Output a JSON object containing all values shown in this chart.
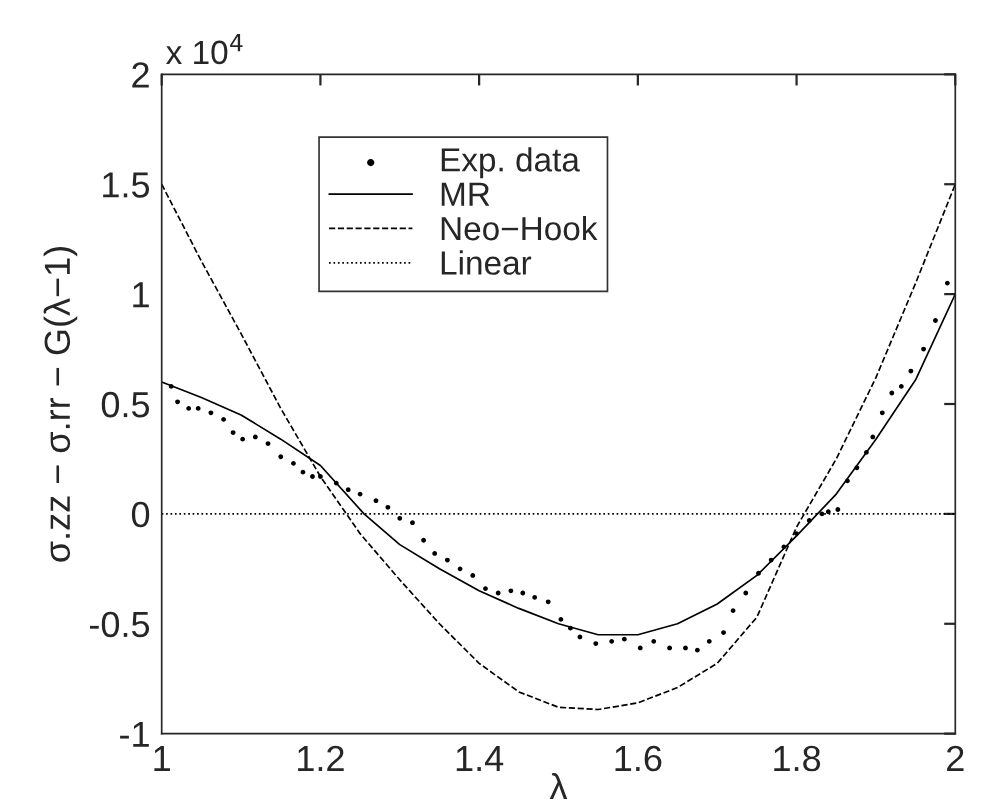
{
  "chart_data": {
    "type": "line",
    "xlabel": "λ",
    "ylabel": "σ.zz − σ.rr − G(λ−1)",
    "annotations": [
      "x 10$^{4}$"
    ],
    "xlim": [
      1,
      2
    ],
    "xticks": [
      1,
      1.2,
      1.4,
      1.6,
      1.8,
      2
    ],
    "ylim": [
      -1,
      2
    ],
    "yticks": [
      -1,
      -0.5,
      0,
      0.5,
      1,
      1.5,
      2
    ],
    "grid": false,
    "legend": "top",
    "series": [
      {
        "name": "Exp. data",
        "type": "scatter",
        "marker": "circle",
        "color": "#000000",
        "x": [
          1.012,
          1.02,
          1.034,
          1.046,
          1.062,
          1.078,
          1.09,
          1.102,
          1.118,
          1.134,
          1.15,
          1.166,
          1.178,
          1.19,
          1.2,
          1.22,
          1.235,
          1.25,
          1.27,
          1.285,
          1.3,
          1.316,
          1.33,
          1.344,
          1.36,
          1.376,
          1.392,
          1.408,
          1.424,
          1.44,
          1.455,
          1.47,
          1.487,
          1.503,
          1.515,
          1.527,
          1.547,
          1.567,
          1.583,
          1.603,
          1.62,
          1.64,
          1.66,
          1.675,
          1.69,
          1.708,
          1.72,
          1.736,
          1.752,
          1.768,
          1.784,
          1.8,
          1.816,
          1.832,
          1.84,
          1.852,
          1.864,
          1.876,
          1.888,
          1.896,
          1.908,
          1.92,
          1.932,
          1.944,
          1.96,
          1.975,
          1.99
        ],
        "values": [
          0.58,
          0.51,
          0.48,
          0.48,
          0.46,
          0.43,
          0.37,
          0.34,
          0.35,
          0.32,
          0.26,
          0.23,
          0.19,
          0.17,
          0.17,
          0.14,
          0.11,
          0.09,
          0.06,
          0.03,
          -0.02,
          -0.04,
          -0.12,
          -0.18,
          -0.21,
          -0.25,
          -0.28,
          -0.34,
          -0.36,
          -0.35,
          -0.36,
          -0.38,
          -0.4,
          -0.48,
          -0.52,
          -0.56,
          -0.59,
          -0.58,
          -0.57,
          -0.61,
          -0.58,
          -0.61,
          -0.61,
          -0.62,
          -0.58,
          -0.54,
          -0.44,
          -0.36,
          -0.27,
          -0.21,
          -0.15,
          -0.09,
          -0.03,
          0,
          0.01,
          0.02,
          0.15,
          0.21,
          0.28,
          0.35,
          0.46,
          0.55,
          0.58,
          0.65,
          0.75,
          0.88,
          1.05
        ]
      },
      {
        "name": "MR",
        "line_style": "solid",
        "color": "#000000",
        "x": [
          1.0,
          1.05,
          1.1,
          1.15,
          1.2,
          1.255,
          1.3,
          1.35,
          1.4,
          1.45,
          1.5,
          1.55,
          1.6,
          1.65,
          1.7,
          1.75,
          1.8,
          1.85,
          1.9,
          1.95,
          2.0
        ],
        "values": [
          0.6,
          0.53,
          0.45,
          0.34,
          0.22,
          0,
          -0.14,
          -0.25,
          -0.35,
          -0.43,
          -0.5,
          -0.55,
          -0.55,
          -0.5,
          -0.41,
          -0.28,
          -0.1,
          0.09,
          0.34,
          0.61,
          1.0
        ]
      },
      {
        "name": "Neo−Hook",
        "line_style": "dashed",
        "color": "#000000",
        "x": [
          1.0,
          1.05,
          1.1,
          1.15,
          1.2,
          1.25,
          1.3,
          1.35,
          1.4,
          1.45,
          1.5,
          1.55,
          1.6,
          1.65,
          1.7,
          1.75,
          1.8,
          1.85,
          1.9,
          1.95,
          2.0
        ],
        "values": [
          1.5,
          1.15,
          0.82,
          0.48,
          0.17,
          -0.09,
          -0.3,
          -0.5,
          -0.68,
          -0.81,
          -0.88,
          -0.89,
          -0.86,
          -0.79,
          -0.68,
          -0.47,
          -0.06,
          0.25,
          0.62,
          1.05,
          1.5
        ]
      },
      {
        "name": "Linear",
        "line_style": "dotted",
        "color": "#000000",
        "x": [
          1,
          2
        ],
        "values": [
          0,
          0
        ]
      }
    ]
  }
}
